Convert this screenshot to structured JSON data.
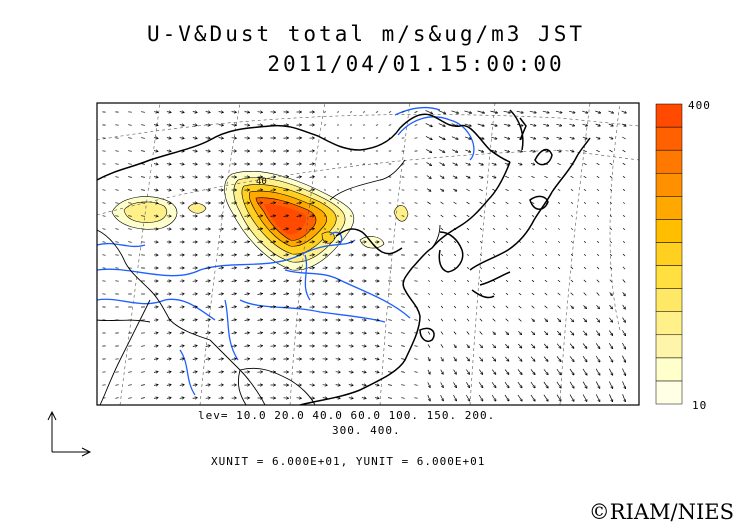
{
  "title": "U-V&Dust total m/s&ug/m3 JST",
  "datetime": "2011/04/01.15:00:00",
  "legend_levels_line1": "lev= 10.0 20.0 40.0 60.0 100. 150. 200.",
  "legend_levels_line2": "300. 400.",
  "unit_line": "XUNIT = 6.000E+01, YUNIT = 6.000E+01",
  "colorbar": {
    "max_label": "400",
    "min_label": "10",
    "colors": [
      "#ffffe6",
      "#ffffcc",
      "#fff5aa",
      "#fff08a",
      "#ffe866",
      "#ffe040",
      "#ffd020",
      "#ffbf00",
      "#ffa800",
      "#ff9000",
      "#ff7800",
      "#ff6000",
      "#ff4a00"
    ]
  },
  "copyright": "©RIAM/NIES",
  "colors": {
    "coastline": "#000000",
    "rivers": "#1e5fff",
    "dust_peak": "#ff4a00"
  }
}
